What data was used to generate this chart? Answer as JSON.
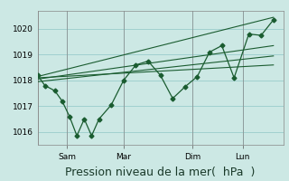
{
  "bg_color": "#cce8e4",
  "grid_color": "#99cccc",
  "line_color": "#1a5c30",
  "xlabel": "Pression niveau de la mer(  hPa  )",
  "xlabel_fontsize": 9,
  "ytick_labels": [
    "1016",
    "1017",
    "1018",
    "1019",
    "1020"
  ],
  "ytick_values": [
    1016,
    1017,
    1018,
    1019,
    1020
  ],
  "ylim": [
    1015.5,
    1020.7
  ],
  "xtick_labels": [
    "Sam",
    "Mar",
    "Dim",
    "Lun"
  ],
  "xtick_positions": [
    0.12,
    0.35,
    0.63,
    0.835
  ],
  "xlim": [
    0.0,
    1.0
  ],
  "jagged_x": [
    0.0,
    0.03,
    0.07,
    0.1,
    0.13,
    0.16,
    0.19,
    0.22,
    0.25,
    0.3,
    0.35,
    0.4,
    0.45,
    0.5,
    0.55,
    0.6,
    0.65,
    0.7,
    0.75,
    0.8,
    0.86,
    0.91,
    0.96
  ],
  "jagged_y": [
    1018.2,
    1017.8,
    1017.6,
    1017.2,
    1016.6,
    1015.85,
    1016.5,
    1015.85,
    1016.5,
    1017.05,
    1018.0,
    1018.6,
    1018.75,
    1018.2,
    1017.3,
    1017.75,
    1018.15,
    1019.1,
    1019.35,
    1018.1,
    1019.8,
    1019.75,
    1020.35
  ],
  "trend1_x": [
    0.0,
    0.96
  ],
  "trend1_y": [
    1018.15,
    1020.45
  ],
  "trend2_x": [
    0.0,
    0.96
  ],
  "trend2_y": [
    1018.05,
    1019.35
  ],
  "trend3_x": [
    0.0,
    0.96
  ],
  "trend3_y": [
    1017.95,
    1018.95
  ],
  "trend4_x": [
    0.0,
    0.96
  ],
  "trend4_y": [
    1018.1,
    1018.6
  ],
  "vline_x": [
    0.0,
    0.12,
    0.35,
    0.63,
    0.835
  ],
  "marker": "D",
  "marker_size": 2.5,
  "tick_fontsize": 6.5
}
